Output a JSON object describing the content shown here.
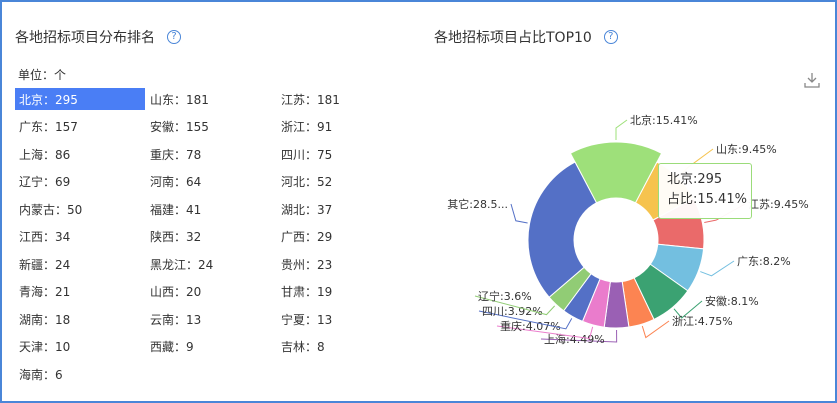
{
  "left_panel": {
    "title": "各地招标项目分布排名",
    "unit_label": "单位：个",
    "items": [
      {
        "name": "北京",
        "value": "295"
      },
      {
        "name": "山东",
        "value": "181"
      },
      {
        "name": "江苏",
        "value": "181"
      },
      {
        "name": "广东",
        "value": "157"
      },
      {
        "name": "安徽",
        "value": "155"
      },
      {
        "name": "浙江",
        "value": "91"
      },
      {
        "name": "上海",
        "value": "86"
      },
      {
        "name": "重庆",
        "value": "78"
      },
      {
        "name": "四川",
        "value": "75"
      },
      {
        "name": "辽宁",
        "value": "69"
      },
      {
        "name": "河南",
        "value": "64"
      },
      {
        "name": "河北",
        "value": "52"
      },
      {
        "name": "内蒙古",
        "value": "50"
      },
      {
        "name": "福建",
        "value": "41"
      },
      {
        "name": "湖北",
        "value": "37"
      },
      {
        "name": "江西",
        "value": "34"
      },
      {
        "name": "陕西",
        "value": "32"
      },
      {
        "name": "广西",
        "value": "29"
      },
      {
        "name": "新疆",
        "value": "24"
      },
      {
        "name": "黑龙江",
        "value": "24"
      },
      {
        "name": "贵州",
        "value": "23"
      },
      {
        "name": "青海",
        "value": "21"
      },
      {
        "name": "山西",
        "value": "20"
      },
      {
        "name": "甘肃",
        "value": "19"
      },
      {
        "name": "湖南",
        "value": "18"
      },
      {
        "name": "云南",
        "value": "13"
      },
      {
        "name": "宁夏",
        "value": "13"
      },
      {
        "name": "天津",
        "value": "10"
      },
      {
        "name": "西藏",
        "value": "9"
      },
      {
        "name": "吉林",
        "value": "8"
      },
      {
        "name": "海南",
        "value": "6"
      }
    ],
    "active_index": 0
  },
  "right_panel": {
    "title": "各地招标项目占比TOP10",
    "tooltip": {
      "line1": "北京:295",
      "line2": "占比:15.41%"
    }
  },
  "icons": {
    "help": "help-circle-icon",
    "download": "download-icon"
  },
  "colors": {
    "accent": "#4a7ef5",
    "border": "#4a86d8"
  },
  "chart_data": {
    "type": "pie",
    "variant": "donut",
    "highlighted": "北京",
    "slices": [
      {
        "label": "北京:15.41%",
        "value": 15.41,
        "color": "#9ee07a"
      },
      {
        "label": "山东:9.45%",
        "value": 9.45,
        "color": "#f6c34e"
      },
      {
        "label": "江苏:9.45%",
        "value": 9.45,
        "color": "#ea6a6a"
      },
      {
        "label": "广东:8.2%",
        "value": 8.2,
        "color": "#73bfe0"
      },
      {
        "label": "安徽:8.1%",
        "value": 8.1,
        "color": "#3ba272"
      },
      {
        "label": "浙江:4.75%",
        "value": 4.75,
        "color": "#fc8452"
      },
      {
        "label": "上海:4.49%",
        "value": 4.49,
        "color": "#9a60b4"
      },
      {
        "label": "重庆:4.07%",
        "value": 4.07,
        "color": "#ea7ccc"
      },
      {
        "label": "四川:3.92%",
        "value": 3.92,
        "color": "#5470c6"
      },
      {
        "label": "辽宁:3.6%",
        "value": 3.6,
        "color": "#91cc75"
      },
      {
        "label": "其它:28.5...",
        "value": 28.56,
        "color": "#5470c6"
      }
    ]
  }
}
